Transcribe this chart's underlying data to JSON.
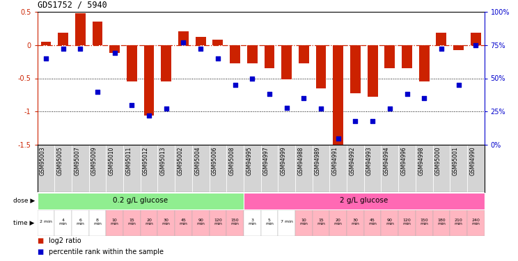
{
  "title": "GDS1752 / 5940",
  "samples": [
    "GSM95003",
    "GSM95005",
    "GSM95007",
    "GSM95009",
    "GSM95010",
    "GSM95011",
    "GSM95012",
    "GSM95013",
    "GSM95002",
    "GSM95004",
    "GSM95006",
    "GSM95008",
    "GSM94995",
    "GSM94997",
    "GSM94999",
    "GSM94988",
    "GSM94989",
    "GSM94991",
    "GSM94992",
    "GSM94993",
    "GSM94994",
    "GSM94996",
    "GSM94998",
    "GSM95000",
    "GSM95001",
    "GSM94990"
  ],
  "log2_ratio": [
    0.05,
    0.18,
    0.48,
    0.35,
    -0.12,
    -0.55,
    -1.06,
    -0.55,
    0.21,
    0.12,
    0.08,
    -0.28,
    -0.27,
    -0.35,
    -0.52,
    -0.28,
    -0.65,
    -1.52,
    -0.72,
    -0.78,
    -0.35,
    -0.35,
    -0.55,
    0.18,
    -0.08,
    0.18
  ],
  "percentile": [
    65,
    72,
    72,
    40,
    69,
    30,
    22,
    27,
    77,
    72,
    65,
    45,
    50,
    38,
    28,
    35,
    27,
    5,
    18,
    18,
    27,
    38,
    35,
    72,
    45,
    75
  ],
  "dose_groups": [
    {
      "label": "0.2 g/L glucose",
      "start": 0,
      "end": 12,
      "color": "#90ee90"
    },
    {
      "label": "2 g/L glucose",
      "start": 12,
      "end": 26,
      "color": "#ff69b4"
    }
  ],
  "time_labels_top": [
    "2 min",
    "4",
    "6",
    "8",
    "10",
    "15",
    "20",
    "30",
    "45",
    "90",
    "120",
    "150",
    "3",
    "5",
    "7 min",
    "10",
    "15",
    "20",
    "30",
    "45",
    "90",
    "120",
    "150",
    "180",
    "210",
    "240"
  ],
  "time_labels_bot": [
    "",
    "min",
    "min",
    "min",
    "min",
    "min",
    "min",
    "min",
    "min",
    "min",
    "min",
    "min",
    "min",
    "min",
    "",
    "min",
    "min",
    "min",
    "min",
    "min",
    "min",
    "min",
    "min",
    "min",
    "min",
    "min"
  ],
  "time_colors": [
    "#ffffff",
    "#ffffff",
    "#ffffff",
    "#ffffff",
    "#ffb6c1",
    "#ffb6c1",
    "#ffb6c1",
    "#ffb6c1",
    "#ffb6c1",
    "#ffb6c1",
    "#ffb6c1",
    "#ffb6c1",
    "#ffffff",
    "#ffffff",
    "#ffffff",
    "#ffb6c1",
    "#ffb6c1",
    "#ffb6c1",
    "#ffb6c1",
    "#ffb6c1",
    "#ffb6c1",
    "#ffb6c1",
    "#ffb6c1",
    "#ffb6c1",
    "#ffb6c1",
    "#ffb6c1"
  ],
  "bar_color": "#cc2200",
  "dot_color": "#0000cc",
  "ylim_left": [
    -1.5,
    0.5
  ],
  "ylim_right": [
    0,
    100
  ],
  "yticks_left": [
    -1.5,
    -1.0,
    -0.5,
    0.0,
    0.5
  ],
  "ytick_labels_left": [
    "-1.5",
    "-1",
    "-0.5",
    "0",
    "0.5"
  ],
  "yticks_right": [
    0,
    25,
    50,
    75,
    100
  ],
  "ytick_labels_right": [
    "0%",
    "25%",
    "50%",
    "75%",
    "100%"
  ],
  "hline_y": 0.0,
  "dotted_lines": [
    -0.5,
    -1.0
  ],
  "sample_bg": "#d4d4d4",
  "label_log2": "log2 ratio",
  "label_percentile": "percentile rank within the sample",
  "dose_label": "dose",
  "time_label": "time"
}
